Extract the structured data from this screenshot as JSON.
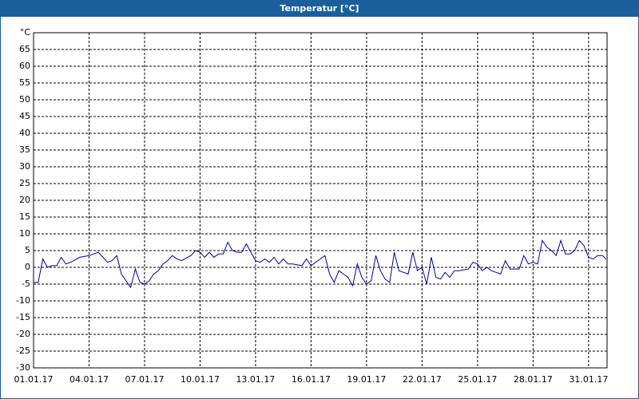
{
  "chart_data": {
    "type": "line",
    "title": "Temperatur [°C]",
    "xlim": [
      1,
      32
    ],
    "xticks": [
      {
        "value": 1,
        "label": "01.01.17"
      },
      {
        "value": 4,
        "label": "04.01.17"
      },
      {
        "value": 7,
        "label": "07.01.17"
      },
      {
        "value": 10,
        "label": "10.01.17"
      },
      {
        "value": 13,
        "label": "13.01.17"
      },
      {
        "value": 16,
        "label": "16.01.17"
      },
      {
        "value": 19,
        "label": "19.01.17"
      },
      {
        "value": 22,
        "label": "22.01.17"
      },
      {
        "value": 25,
        "label": "25.01.17"
      },
      {
        "value": 28,
        "label": "28.01.17"
      },
      {
        "value": 31,
        "label": "31.01.17"
      }
    ],
    "ylim": [
      -30,
      70
    ],
    "yticks": [
      -30,
      -25,
      -20,
      -15,
      -10,
      -5,
      0,
      5,
      10,
      15,
      20,
      25,
      30,
      35,
      40,
      45,
      50,
      55,
      60,
      65,
      {
        "value": 70,
        "label": "°C"
      }
    ],
    "grid": true,
    "x": [
      1,
      1.25,
      1.5,
      1.75,
      2,
      2.25,
      2.5,
      2.75,
      3,
      3.5,
      4,
      4.25,
      4.5,
      4.75,
      5,
      5.25,
      5.5,
      5.75,
      6,
      6.25,
      6.5,
      6.75,
      7,
      7.25,
      7.5,
      7.75,
      8,
      8.25,
      8.5,
      8.75,
      9,
      9.5,
      9.75,
      10,
      10.25,
      10.5,
      10.75,
      11,
      11.25,
      11.5,
      11.75,
      12,
      12.25,
      12.5,
      12.75,
      13,
      13.25,
      13.5,
      13.75,
      14,
      14.25,
      14.5,
      14.75,
      15,
      15.5,
      15.75,
      16,
      16.5,
      16.75,
      17,
      17.25,
      17.5,
      17.75,
      18,
      18.25,
      18.5,
      18.75,
      19,
      19.25,
      19.5,
      19.75,
      20,
      20.25,
      20.5,
      20.75,
      21,
      21.25,
      21.5,
      21.75,
      22,
      22.25,
      22.5,
      22.75,
      23,
      23.25,
      23.5,
      23.75,
      24,
      24.5,
      24.75,
      25,
      25.25,
      25.5,
      25.75,
      26,
      26.25,
      26.5,
      26.75,
      27,
      27.25,
      27.5,
      27.75,
      28,
      28.25,
      28.5,
      28.75,
      29,
      29.25,
      29.5,
      29.75,
      30,
      30.25,
      30.5,
      30.75,
      31,
      31.25,
      31.5,
      31.75,
      31.95
    ],
    "series": [
      {
        "color": "#0000a0",
        "values": [
          -4.5,
          -4.5,
          2.5,
          0,
          0.5,
          0.5,
          3,
          1,
          1.5,
          3,
          3.5,
          4,
          4.5,
          3,
          1.5,
          2,
          3.5,
          -2,
          -4,
          -6,
          -0.5,
          -4.5,
          -5,
          -4,
          -2,
          -1,
          1,
          2,
          3.5,
          2.5,
          2,
          3.5,
          5,
          4.5,
          3,
          4.5,
          3,
          4,
          4,
          7.5,
          5,
          4.5,
          4.5,
          7,
          4.5,
          2,
          1.5,
          2.5,
          1.5,
          3,
          1,
          2.5,
          1,
          1,
          0.5,
          2.5,
          0.5,
          2.5,
          3.5,
          -2,
          -4.5,
          -1,
          -2,
          -3,
          -5.5,
          1,
          -3,
          -5,
          -4,
          3.5,
          -1,
          -3.5,
          -4.5,
          4.5,
          -1,
          -1.5,
          -2,
          4.5,
          -1,
          0,
          -5,
          3,
          -3,
          -3.5,
          -1.5,
          -3,
          -1,
          -1,
          -0.5,
          1.5,
          1,
          -1,
          0,
          -1,
          -1.5,
          -2,
          2,
          -0.5,
          -0.5,
          -0.5,
          3.5,
          1,
          1.5,
          1,
          8,
          6,
          5,
          3.5,
          8,
          4,
          4,
          5,
          8,
          6.5,
          3,
          2.5,
          3.5,
          3.5,
          2.5
        ]
      }
    ]
  }
}
